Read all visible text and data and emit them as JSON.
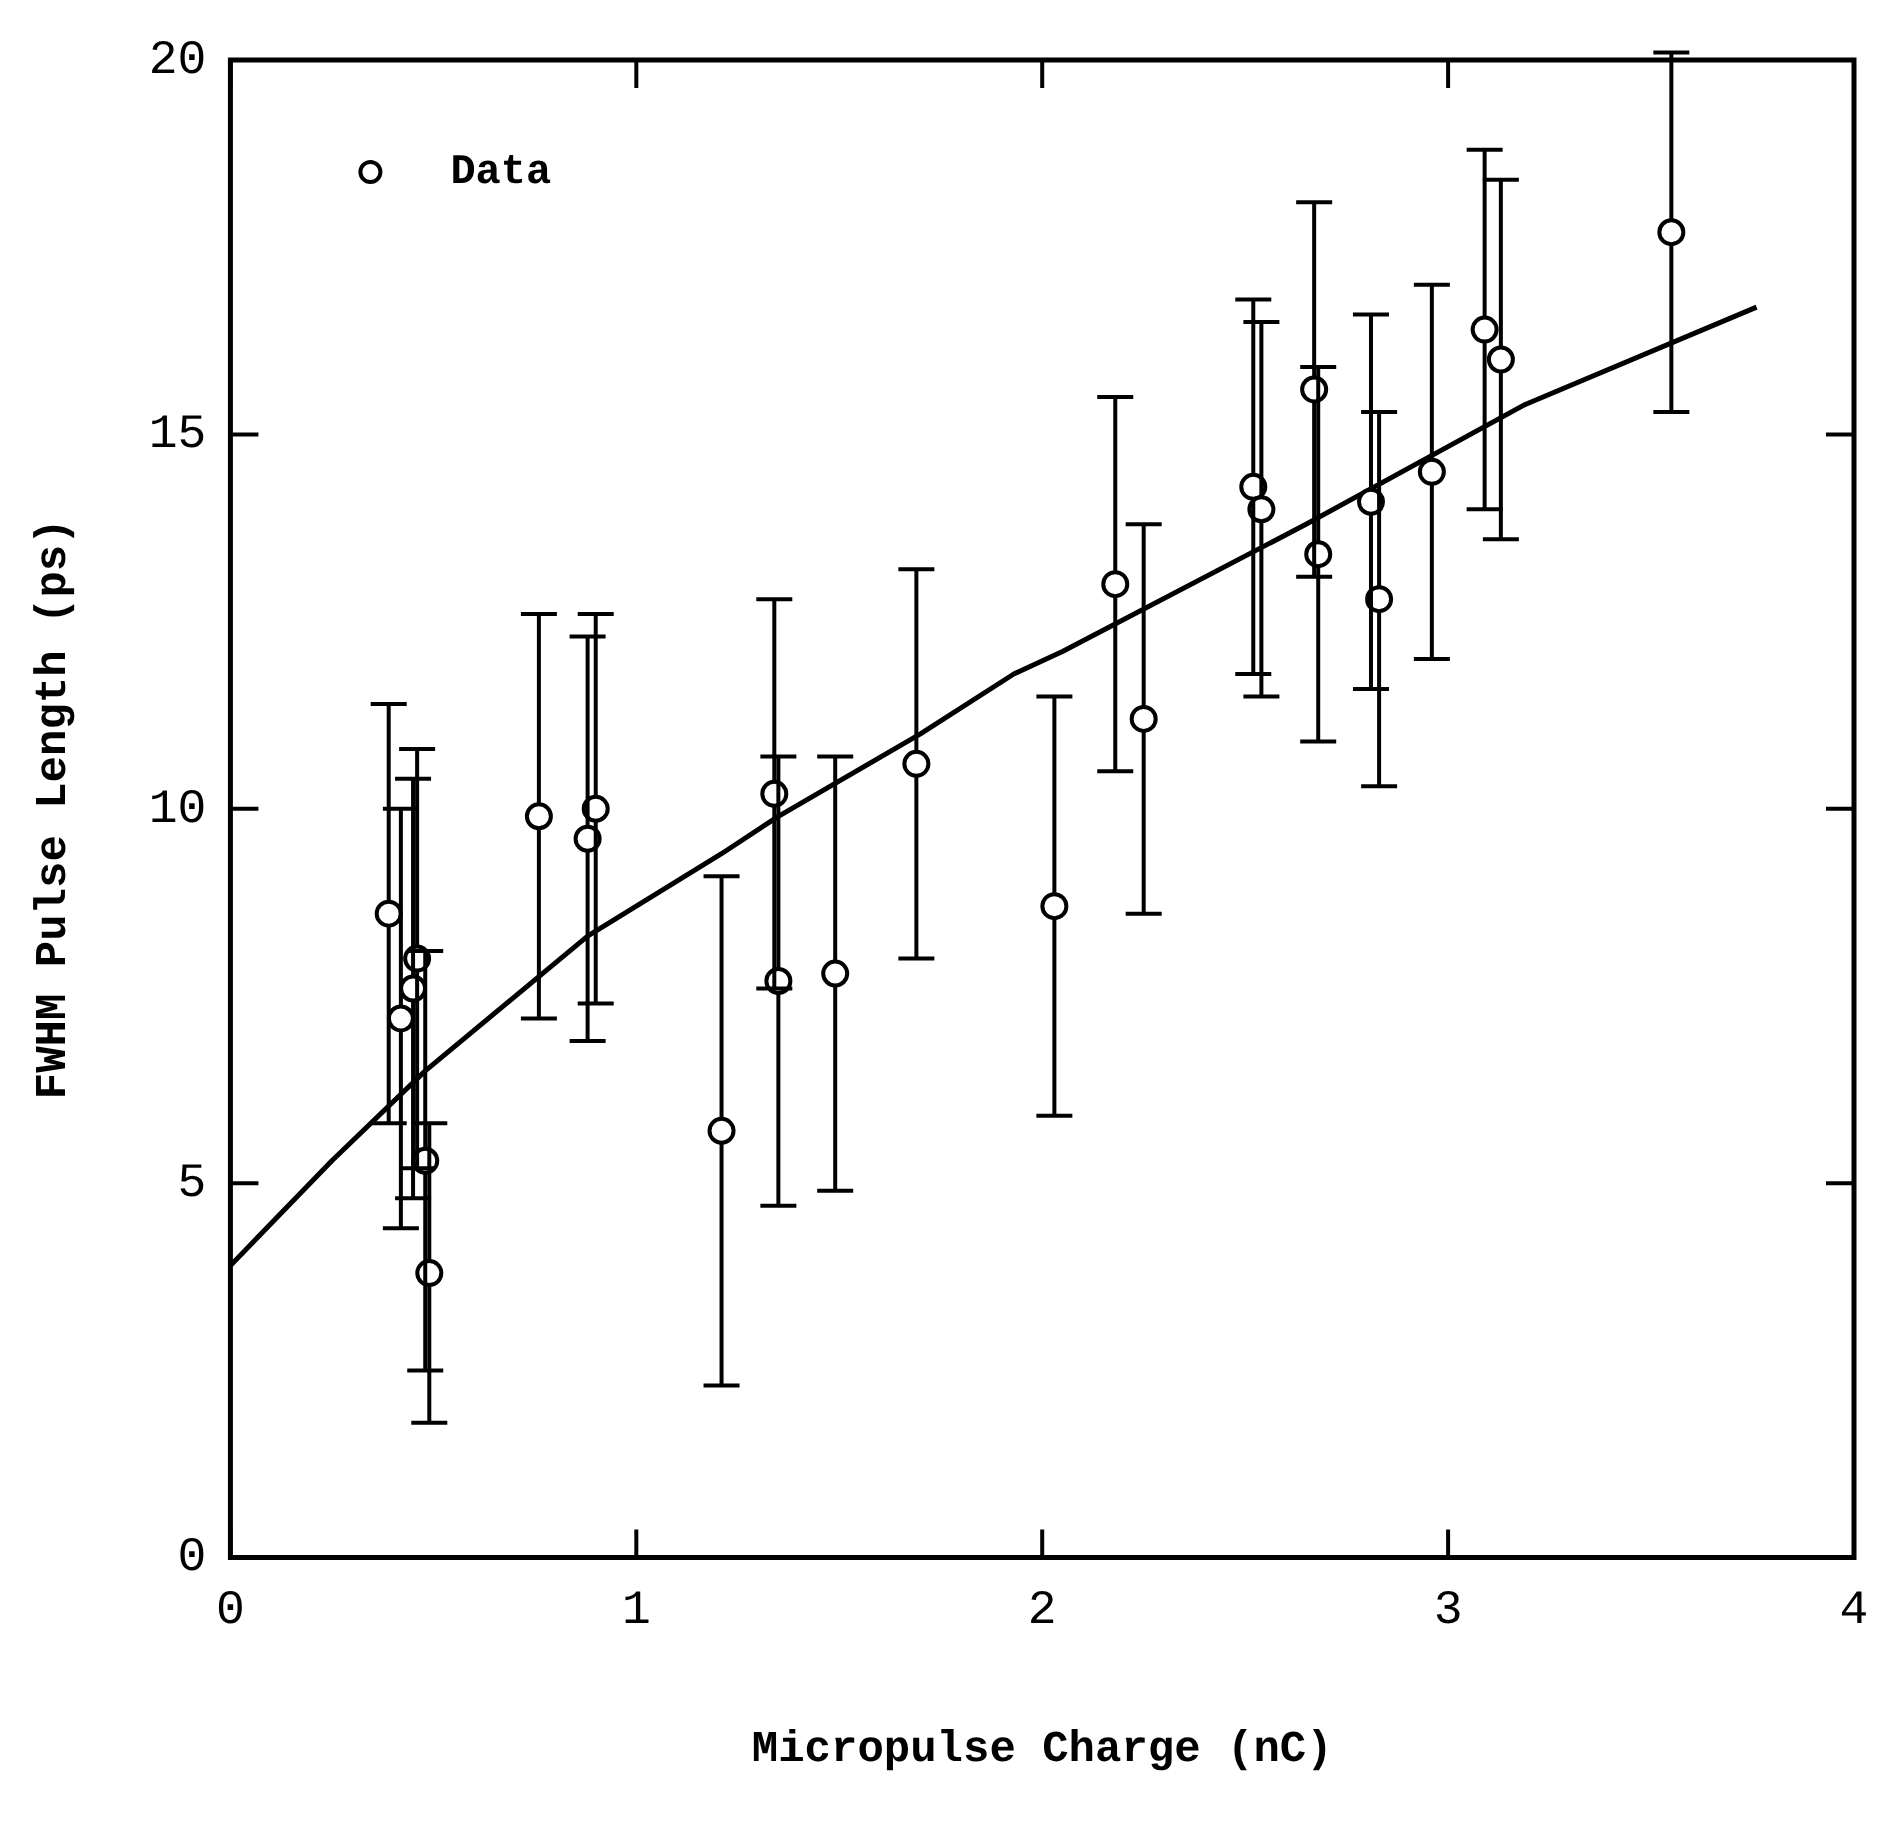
{
  "chart_data": {
    "type": "scatter",
    "xlabel": "Micropulse Charge (nC)",
    "ylabel": "FWHM Pulse Length (ps)",
    "xlim": [
      0,
      4
    ],
    "xticks": [
      0,
      1,
      2,
      3,
      4
    ],
    "ylim": [
      0,
      20
    ],
    "yticks": [
      0,
      5,
      10,
      15,
      20
    ],
    "grid": false,
    "legend": "top left",
    "series": [
      {
        "name": "Data",
        "color": "#000000",
        "marker": "circle",
        "x": [
          0.39,
          0.46,
          0.45,
          0.42,
          0.48,
          0.49,
          0.76,
          0.88,
          0.9,
          1.21,
          1.34,
          1.35,
          1.49,
          1.69,
          2.03,
          2.18,
          2.25,
          2.52,
          2.54,
          2.67,
          2.68,
          2.81,
          2.83,
          2.96,
          3.09,
          3.13,
          3.55
        ],
        "values": [
          8.6,
          8.0,
          7.6,
          7.2,
          5.3,
          3.8,
          9.9,
          9.6,
          10.0,
          5.7,
          10.2,
          7.7,
          7.8,
          10.6,
          8.7,
          13.0,
          11.2,
          14.3,
          14.0,
          15.6,
          13.4,
          14.1,
          12.8,
          14.5,
          16.4,
          16.0,
          17.7
        ],
        "errors": [
          2.8,
          2.8,
          2.8,
          2.8,
          2.8,
          2.0,
          2.7,
          2.7,
          2.6,
          3.4,
          2.6,
          3.0,
          2.9,
          2.6,
          2.8,
          2.5,
          2.6,
          2.5,
          2.5,
          2.5,
          2.5,
          2.5,
          2.5,
          2.5,
          2.4,
          2.4,
          2.4
        ]
      },
      {
        "type": "line",
        "color": "#000000",
        "line_style": "solid",
        "marker": "none",
        "x": [
          0,
          0.25,
          0.48,
          0.88,
          1.21,
          1.35,
          1.7,
          1.93,
          2.05,
          2.65,
          3.19,
          3.76
        ],
        "values": [
          3.9,
          5.3,
          6.5,
          8.3,
          9.4,
          9.9,
          11.0,
          11.8,
          12.1,
          13.8,
          15.4,
          16.7
        ]
      }
    ]
  }
}
